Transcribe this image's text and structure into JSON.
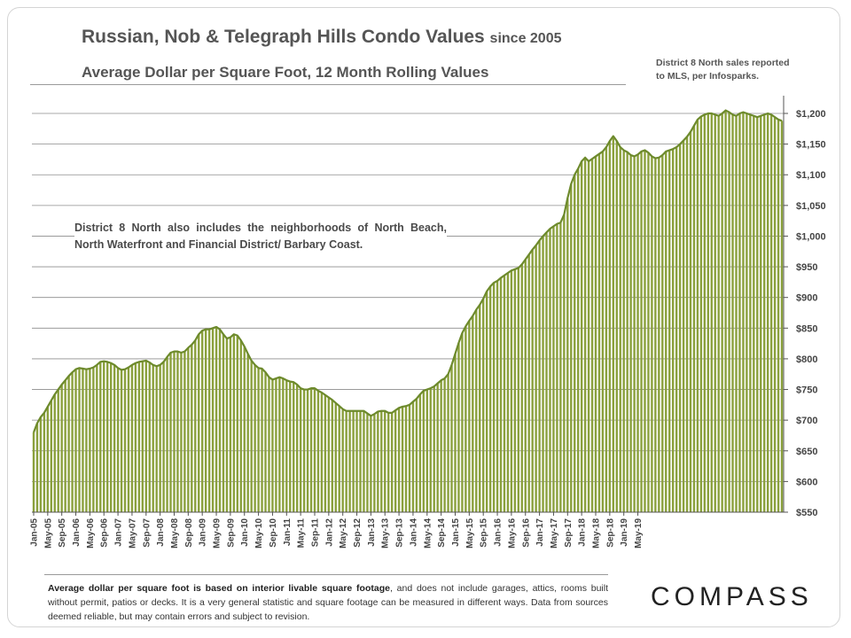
{
  "title": {
    "main": "Russian, Nob & Telegraph Hills Condo Values",
    "since": "since 2005",
    "subtitle": "Average Dollar  per Square  Foot, 12 Month Rolling Values"
  },
  "source_note": {
    "line1": "District 8 North sales reported",
    "line2": "to MLS, per Infosparks."
  },
  "annotation": "District 8 North also includes the neighborhoods of North Beach, North Waterfront and Financial District/ Barbary Coast.",
  "footer": {
    "bold": "Average dollar per square foot is based on interior livable square footage",
    "rest": ", and does not include garages, attics, rooms built without permit, patios or decks. It is a very general statistic and square footage can be measured in different ways. Data from sources deemed reliable, but may contain errors and subject to revision."
  },
  "logo": "COMPASS",
  "colors": {
    "bar": "#8aa03c",
    "line": "#6d8a2c",
    "grid": "#8c8c8c",
    "text": "#555555"
  },
  "chart_data": {
    "type": "bar",
    "title": "Russian, Nob & Telegraph Hills Condo Values since 2005",
    "subtitle": "Average Dollar per Square Foot, 12 Month Rolling Values",
    "xlabel": "",
    "ylabel": "",
    "ylim": [
      550,
      1200
    ],
    "yticks": [
      550,
      600,
      650,
      700,
      750,
      800,
      850,
      900,
      950,
      1000,
      1050,
      1100,
      1150,
      1200
    ],
    "ytick_labels": [
      "$550",
      "$600",
      "$650",
      "$700",
      "$750",
      "$800",
      "$850",
      "$900",
      "$950",
      "$1,000",
      "$1,050",
      "$1,100",
      "$1,150",
      "$1,200"
    ],
    "grid": true,
    "overlay_line": true,
    "xtick_labels": [
      "Jan-05",
      "May-05",
      "Sep-05",
      "Jan-06",
      "May-06",
      "Sep-06",
      "Jan-07",
      "May-07",
      "Sep-07",
      "Jan-08",
      "May-08",
      "Sep-08",
      "Jan-09",
      "May-09",
      "Sep-09",
      "Jan-10",
      "May-10",
      "Sep-10",
      "Jan-11",
      "May-11",
      "Sep-11",
      "Jan-12",
      "May-12",
      "Sep-12",
      "Jan-13",
      "May-13",
      "Sep-13",
      "Jan-14",
      "May-14",
      "Sep-14",
      "Jan-15",
      "May-15",
      "Sep-15",
      "Jan-16",
      "May-16",
      "Sep-16",
      "Jan-17",
      "May-17",
      "Sep-17",
      "Jan-18",
      "May-18",
      "Sep-18",
      "Jan-19",
      "May-19"
    ],
    "values": [
      680,
      695,
      705,
      712,
      722,
      732,
      742,
      750,
      758,
      765,
      772,
      778,
      783,
      785,
      784,
      783,
      784,
      786,
      790,
      795,
      796,
      795,
      793,
      790,
      785,
      782,
      783,
      786,
      790,
      793,
      795,
      796,
      797,
      794,
      790,
      788,
      790,
      795,
      803,
      810,
      812,
      812,
      810,
      812,
      818,
      823,
      830,
      840,
      846,
      848,
      848,
      850,
      852,
      848,
      840,
      833,
      835,
      840,
      838,
      830,
      820,
      808,
      797,
      790,
      785,
      784,
      778,
      770,
      766,
      768,
      770,
      768,
      765,
      763,
      762,
      758,
      752,
      750,
      750,
      752,
      752,
      748,
      745,
      741,
      737,
      733,
      728,
      723,
      718,
      715,
      715,
      715,
      715,
      715,
      715,
      711,
      707,
      710,
      714,
      715,
      715,
      712,
      712,
      716,
      720,
      722,
      723,
      725,
      730,
      735,
      742,
      748,
      750,
      752,
      755,
      760,
      765,
      768,
      775,
      790,
      808,
      826,
      842,
      853,
      862,
      870,
      880,
      888,
      898,
      910,
      918,
      924,
      927,
      932,
      936,
      940,
      944,
      946,
      948,
      954,
      962,
      970,
      978,
      985,
      993,
      1000,
      1006,
      1012,
      1016,
      1020,
      1022,
      1035,
      1062,
      1085,
      1100,
      1110,
      1122,
      1128,
      1122,
      1126,
      1130,
      1134,
      1138,
      1145,
      1155,
      1163,
      1155,
      1145,
      1140,
      1137,
      1132,
      1130,
      1133,
      1138,
      1140,
      1136,
      1130,
      1127,
      1128,
      1132,
      1138,
      1140,
      1142,
      1145,
      1150,
      1156,
      1162,
      1170,
      1180,
      1190,
      1195,
      1198,
      1200,
      1200,
      1198,
      1196,
      1200,
      1205,
      1202,
      1198,
      1196,
      1200,
      1202,
      1200,
      1198,
      1196,
      1194,
      1196,
      1198,
      1200,
      1198,
      1194,
      1190,
      1188
    ]
  }
}
